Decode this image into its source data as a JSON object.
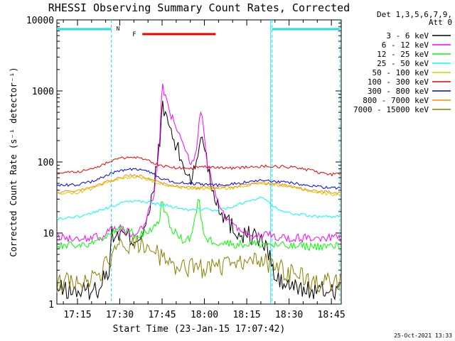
{
  "chart_data": {
    "type": "line",
    "title": "RHESSI Observing Summary Count Rates, Corrected",
    "xlabel": "Start Time (23-Jan-15 17:07:42)",
    "ylabel": "Corrected Count Rate (s⁻¹ detector⁻¹)",
    "y_scale": "log",
    "xlim": [
      "17:07:42",
      "18:48:30"
    ],
    "ylim": [
      1,
      10000
    ],
    "x_ticks": [
      "17:15",
      "17:30",
      "17:45",
      "18:00",
      "18:15",
      "18:30",
      "18:45"
    ],
    "y_ticks": [
      "1",
      "10",
      "100",
      "1000",
      "10000"
    ],
    "footer": "25-Oct-2021 13:33",
    "legend_header": [
      "Det 1,3,5,6,7,9,",
      "Att 0"
    ],
    "legend_position": "right",
    "annotations": {
      "night_label": "N",
      "flare_label": "F",
      "night_intervals": [
        [
          "17:07:42",
          "17:27:00"
        ],
        [
          "18:24:00",
          "18:48:00"
        ]
      ],
      "flare_interval": [
        "17:38:00",
        "18:04:00"
      ],
      "dashed_vlines": [
        "17:27:00",
        "18:24:00"
      ],
      "solid_vline": "18:24:00"
    },
    "series": [
      {
        "name": "3 - 6 keV",
        "color": "#000000",
        "x": [
          "17:09",
          "17:16",
          "17:22",
          "17:24",
          "17:26",
          "17:27",
          "17:30",
          "17:33",
          "17:35",
          "17:38",
          "17:40",
          "17:42",
          "17:44",
          "17:45",
          "17:47",
          "17:49",
          "17:51",
          "17:53",
          "17:55",
          "17:57",
          "17:58",
          "17:59",
          "18:01",
          "18:03",
          "18:05",
          "18:08",
          "18:12",
          "18:15",
          "18:18",
          "18:21",
          "18:23",
          "18:24",
          "18:25",
          "18:30",
          "18:35",
          "18:40",
          "18:45"
        ],
        "y": [
          1.6,
          1.5,
          1.6,
          2.3,
          2.7,
          9,
          9.5,
          8.8,
          8,
          10,
          15,
          40,
          180,
          550,
          400,
          200,
          130,
          80,
          60,
          80,
          150,
          280,
          100,
          40,
          25,
          15,
          10,
          9.5,
          9,
          7,
          5,
          3.5,
          2.2,
          1.8,
          1.6,
          1.5,
          1.6
        ]
      },
      {
        "name": "6 - 12 keV",
        "color": "#ff00ff",
        "x": [
          "17:09",
          "17:20",
          "17:24",
          "17:27",
          "17:30",
          "17:33",
          "17:36",
          "17:39",
          "17:42",
          "17:44",
          "17:45",
          "17:47",
          "17:49",
          "17:51",
          "17:53",
          "17:55",
          "17:57",
          "17:58",
          "17:59",
          "18:00",
          "18:01",
          "18:03",
          "18:05",
          "18:08",
          "18:12",
          "18:15",
          "18:20",
          "18:24",
          "18:30",
          "18:40",
          "18:45"
        ],
        "y": [
          8.5,
          8.5,
          9,
          11,
          12,
          10,
          10,
          14,
          32,
          160,
          1300,
          600,
          380,
          230,
          160,
          100,
          120,
          350,
          550,
          200,
          100,
          45,
          25,
          15,
          12,
          9.5,
          9.5,
          9,
          8.5,
          8.5,
          8.5
        ]
      },
      {
        "name": "12 - 25 keV",
        "color": "#00ff00",
        "x": [
          "17:09",
          "17:20",
          "17:24",
          "17:27",
          "17:30",
          "17:33",
          "17:36",
          "17:39",
          "17:42",
          "17:44",
          "17:45",
          "17:46",
          "17:48",
          "17:52",
          "17:55",
          "17:57",
          "17:58",
          "17:59",
          "18:01",
          "18:05",
          "18:10",
          "18:20",
          "18:30",
          "18:40",
          "18:45"
        ],
        "y": [
          6.5,
          7,
          8,
          10,
          11,
          11,
          9,
          10,
          12,
          15,
          30,
          20,
          12,
          8,
          8.5,
          18,
          32,
          13,
          8,
          7.5,
          7,
          7,
          6.5,
          6.5,
          6.5
        ]
      },
      {
        "name": "25 - 50 keV",
        "color": "#00ffff",
        "x": [
          "17:09",
          "17:15",
          "17:20",
          "17:25",
          "17:30",
          "17:35",
          "17:40",
          "17:45",
          "17:50",
          "17:55",
          "18:00",
          "18:05",
          "18:10",
          "18:15",
          "18:20",
          "18:25",
          "18:30",
          "18:35",
          "18:40",
          "18:45"
        ],
        "y": [
          16,
          17,
          19,
          22,
          26,
          28,
          27,
          25,
          23,
          21,
          22,
          21,
          23,
          28,
          32,
          23,
          19,
          18,
          17,
          17
        ]
      },
      {
        "name": "50 - 100 keV",
        "color": "#d0d000",
        "x": [
          "17:09",
          "17:15",
          "17:20",
          "17:25",
          "17:30",
          "17:35",
          "17:40",
          "17:45",
          "17:50",
          "17:55",
          "18:00",
          "18:05",
          "18:10",
          "18:15",
          "18:20",
          "18:25",
          "18:30",
          "18:35",
          "18:40",
          "18:45"
        ],
        "y": [
          36,
          37,
          42,
          50,
          58,
          62,
          56,
          48,
          44,
          42,
          42,
          42,
          43,
          47,
          50,
          48,
          45,
          41,
          37,
          35
        ]
      },
      {
        "name": "100 - 300 keV",
        "color": "#ee0000",
        "x": [
          "17:09",
          "17:15",
          "17:20",
          "17:25",
          "17:30",
          "17:35",
          "17:40",
          "17:45",
          "17:50",
          "17:55",
          "18:00",
          "18:05",
          "18:10",
          "18:15",
          "18:20",
          "18:25",
          "18:30",
          "18:35",
          "18:40",
          "18:45"
        ],
        "y": [
          70,
          72,
          80,
          95,
          112,
          118,
          105,
          88,
          82,
          82,
          85,
          83,
          82,
          84,
          87,
          87,
          85,
          80,
          72,
          67
        ]
      },
      {
        "name": "300 - 800 keV",
        "color": "#0000ee",
        "x": [
          "17:09",
          "17:15",
          "17:20",
          "17:25",
          "17:30",
          "17:35",
          "17:40",
          "17:45",
          "17:50",
          "17:55",
          "18:00",
          "18:05",
          "18:10",
          "18:15",
          "18:20",
          "18:25",
          "18:30",
          "18:35",
          "18:40",
          "18:45"
        ],
        "y": [
          47,
          48,
          53,
          64,
          76,
          80,
          74,
          58,
          52,
          50,
          48,
          47,
          49,
          52,
          55,
          53,
          51,
          48,
          45,
          43
        ]
      },
      {
        "name": "800 - 7000 keV",
        "color": "#ff8c00",
        "x": [
          "17:09",
          "17:15",
          "17:20",
          "17:25",
          "17:30",
          "17:35",
          "17:40",
          "17:45",
          "17:50",
          "17:55",
          "18:00",
          "18:05",
          "18:10",
          "18:15",
          "18:20",
          "18:25",
          "18:30",
          "18:35",
          "18:40",
          "18:45"
        ],
        "y": [
          38,
          39,
          44,
          52,
          61,
          66,
          60,
          50,
          46,
          44,
          44,
          44,
          45,
          48,
          51,
          49,
          46,
          42,
          39,
          37
        ]
      },
      {
        "name": "7000 - 15000 keV",
        "color": "#8b8000",
        "x": [
          "17:09",
          "17:15",
          "17:20",
          "17:24",
          "17:27",
          "17:30",
          "17:35",
          "17:40",
          "17:45",
          "17:50",
          "17:55",
          "18:00",
          "18:05",
          "18:10",
          "18:15",
          "18:20",
          "18:24",
          "18:30",
          "18:35",
          "18:40",
          "18:45"
        ],
        "y": [
          2,
          2,
          2.2,
          3,
          4.5,
          6.5,
          7,
          6,
          4.5,
          3.5,
          3.2,
          3.2,
          3.2,
          3.5,
          4,
          4.2,
          3.5,
          2.8,
          2.3,
          2,
          2
        ]
      }
    ]
  }
}
